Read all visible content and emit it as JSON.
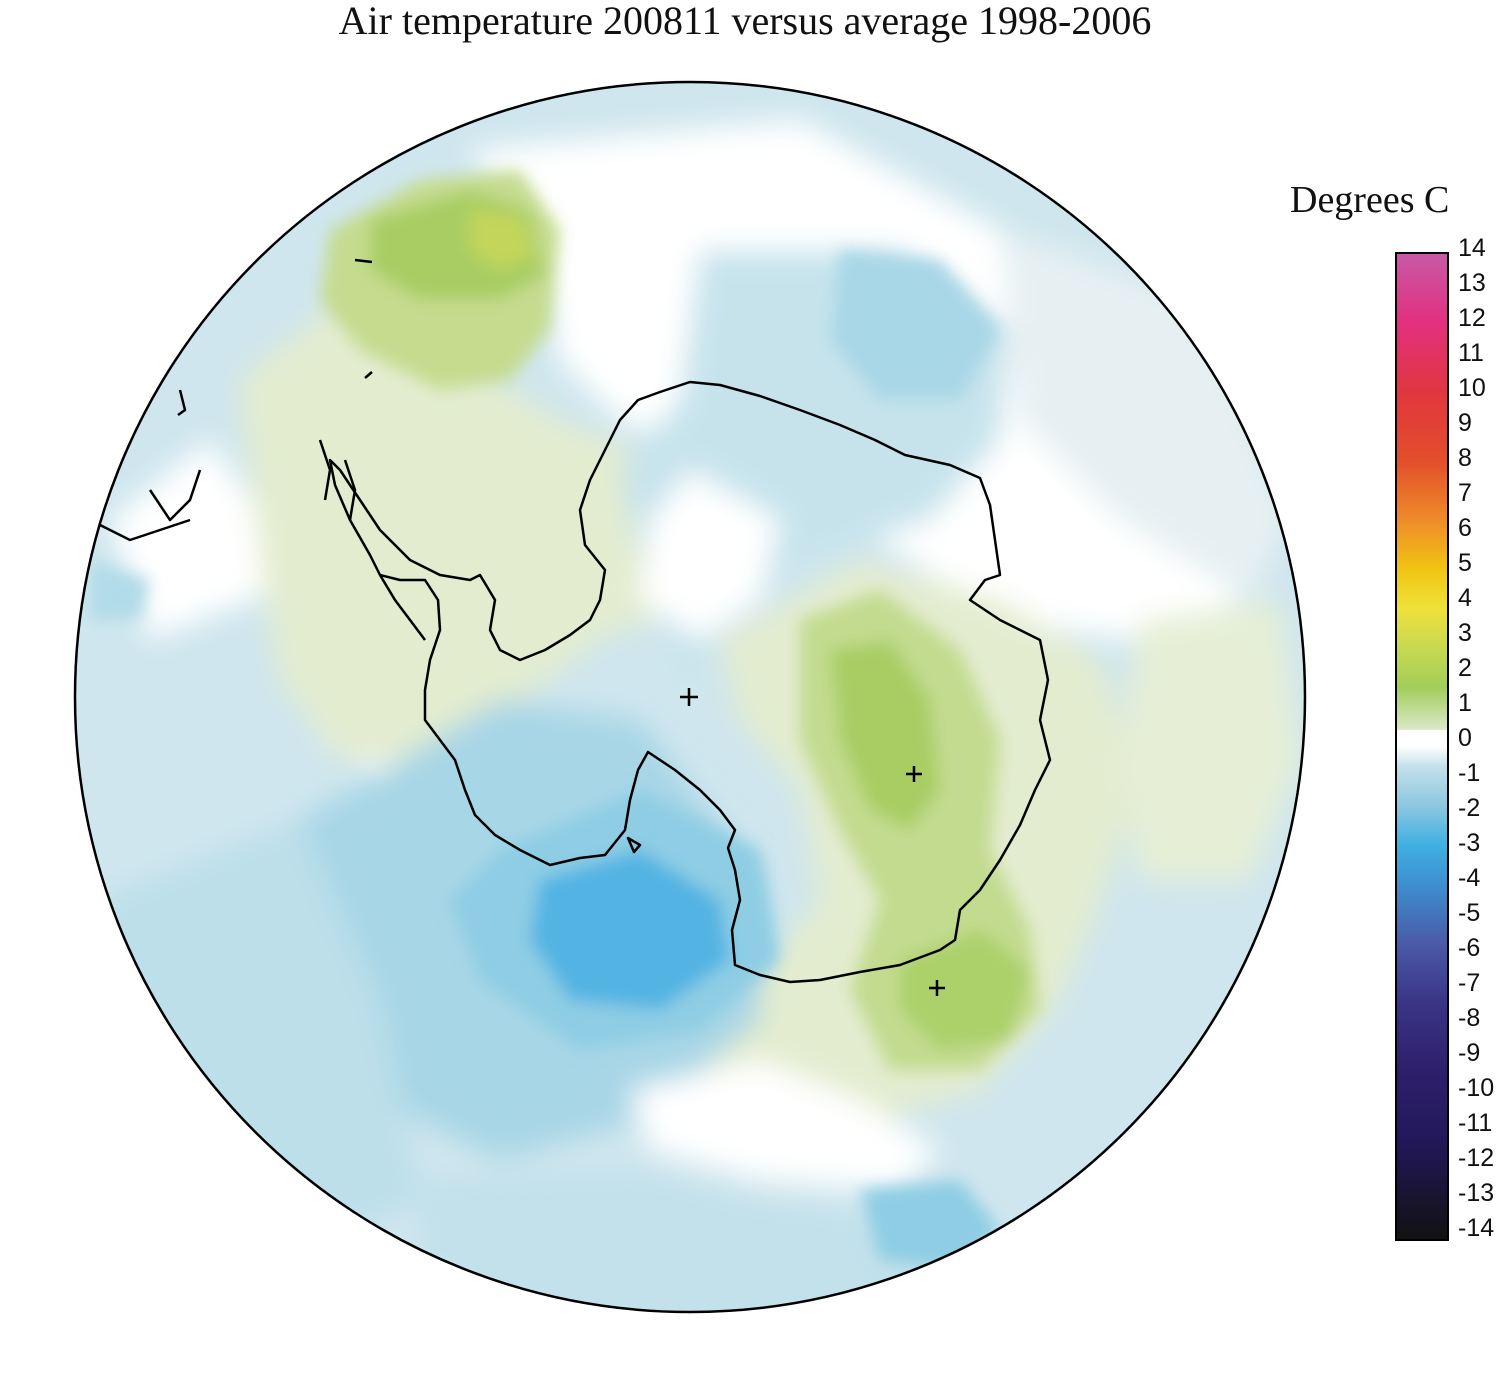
{
  "title": "Air temperature 200811 versus average 1998-2006",
  "legend": {
    "title": "Degrees C",
    "ticks": [
      "14",
      "13",
      "12",
      "11",
      "10",
      "9",
      "8",
      "7",
      "6",
      "5",
      "4",
      "3",
      "2",
      "1",
      "0",
      "-1",
      "-2",
      "-3",
      "-4",
      "-5",
      "-6",
      "-7",
      "-8",
      "-9",
      "-10",
      "-11",
      "-12",
      "-13",
      "-14"
    ],
    "colors": {
      "14": "#c75aa8",
      "13": "#d9449a",
      "12": "#e2307f",
      "11": "#e13640",
      "10": "#de3a2f",
      "9": "#e34e2b",
      "8": "#ec6b26",
      "7": "#ef8a2a",
      "6": "#e6a635",
      "5": "#f1c412",
      "4": "#efe13a",
      "3": "#c8d950",
      "2": "#a2cd5a",
      "1": "#d7e6c1",
      "0": "#ffffff",
      "-1": "#c4e0ea",
      "-2": "#8cc7e0",
      "-3": "#3fb0e2",
      "-4": "#3e8fcf",
      "-5": "#4b6db3",
      "-6": "#4a5aa8",
      "-7": "#3c4496",
      "-8": "#3a3485",
      "-9": "#3a2a7b",
      "-10": "#2e1f6b",
      "-11": "#22185a",
      "-12": "#1a1a40",
      "-13": "#1a1a1f",
      "-14": "#111111"
    }
  },
  "map": {
    "projection": "south-polar stereographic",
    "fill_colors": {
      "green_strong": "#a9cd63",
      "green_mid": "#c7dd97",
      "green_light": "#e3eccf",
      "white": "#ffffff",
      "blue_pale": "#dbecf1",
      "blue_light": "#bde0ea",
      "blue_mid": "#9ed3e4",
      "blue_strong": "#52b4e3",
      "coast": "#000000"
    }
  }
}
